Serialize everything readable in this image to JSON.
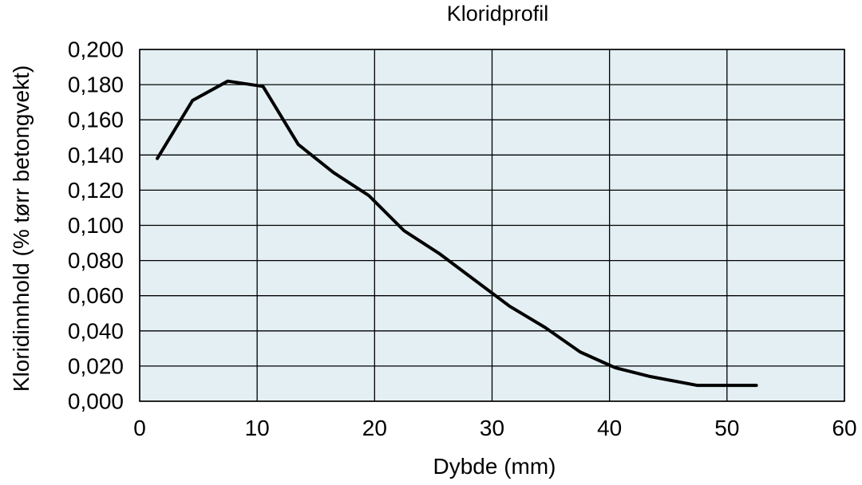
{
  "chart_data": {
    "type": "line",
    "title": "Kloridprofil",
    "xlabel": "Dybde (mm)",
    "ylabel": "Kloridinnhold (% tørr betongvekt)",
    "xlim": [
      0,
      60
    ],
    "ylim": [
      0,
      0.2
    ],
    "x_ticks": [
      0,
      10,
      20,
      30,
      40,
      50,
      60
    ],
    "x_tick_labels": [
      "0",
      "10",
      "20",
      "30",
      "40",
      "50",
      "60"
    ],
    "y_ticks": [
      0,
      0.02,
      0.04,
      0.06,
      0.08,
      0.1,
      0.12,
      0.14,
      0.16,
      0.18,
      0.2
    ],
    "y_tick_labels": [
      "0,000",
      "0,020",
      "0,040",
      "0,060",
      "0,080",
      "0,100",
      "0,120",
      "0,140",
      "0,160",
      "0,180",
      "0,200"
    ],
    "grid": true,
    "legend": false,
    "plot_background": "#e3eff3",
    "line_color": "#000000",
    "series": [
      {
        "x": [
          1.5,
          4.5,
          7.5,
          10.5,
          13.5,
          16.5,
          19.5,
          22.5,
          25.5,
          28.5,
          31.5,
          34.5,
          37.5,
          40.5,
          43.5,
          47.5,
          52.5
        ],
        "values": [
          0.138,
          0.171,
          0.182,
          0.179,
          0.146,
          0.13,
          0.117,
          0.097,
          0.084,
          0.069,
          0.054,
          0.042,
          0.028,
          0.019,
          0.014,
          0.009,
          0.009
        ]
      }
    ]
  }
}
